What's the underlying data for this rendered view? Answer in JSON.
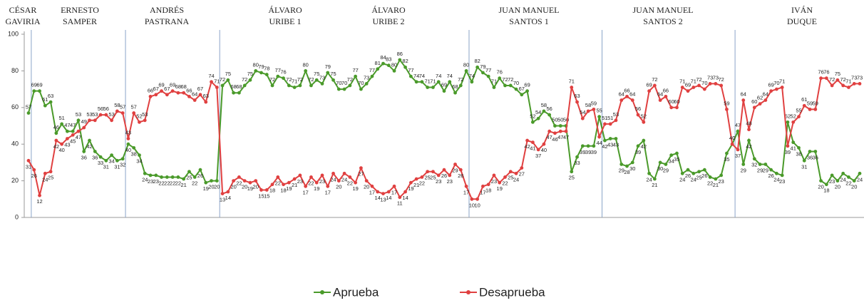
{
  "chart_data": {
    "type": "line",
    "periods": [
      [
        "CÉSAR",
        "GAVIRIA"
      ],
      [
        "ERNESTO",
        "SAMPER"
      ],
      [
        "ANDRÉS",
        "PASTRANA"
      ],
      [
        "ÁLVARO",
        "URIBE 1"
      ],
      [
        "ÁLVARO",
        "URIBE 2"
      ],
      [
        "JUAN MANUEL",
        "SANTOS 1"
      ],
      [
        "JUAN MANUEL",
        "SANTOS 2"
      ],
      [
        "IVÁN",
        "DUQUE"
      ]
    ],
    "categories": [
      null,
      null,
      null,
      null,
      null,
      null,
      null,
      null,
      null,
      null,
      null,
      null,
      null,
      null,
      null,
      null,
      null,
      null,
      null,
      null,
      null,
      null,
      null,
      null,
      null,
      null,
      null,
      null,
      null,
      null,
      null,
      null,
      null,
      null,
      null,
      null,
      null,
      null,
      null,
      null,
      null,
      null,
      null,
      null,
      null,
      null,
      null,
      null,
      null,
      null,
      null,
      null,
      null,
      null,
      null,
      null,
      null,
      null,
      null,
      null,
      null,
      null,
      null,
      null,
      null,
      null,
      null,
      null,
      null,
      null,
      null,
      null,
      null,
      null,
      null,
      null,
      null,
      null,
      null,
      null,
      null,
      null,
      null,
      null,
      null,
      null,
      null,
      null,
      null,
      null,
      null,
      null,
      null,
      null,
      null,
      null,
      null,
      null,
      null,
      null,
      null,
      null,
      null,
      null,
      null,
      null,
      null,
      null,
      null,
      null,
      null,
      null,
      null,
      null,
      null,
      null,
      null,
      null,
      null,
      null,
      null,
      null,
      null,
      null,
      null,
      null,
      null,
      null,
      null,
      null,
      null,
      null,
      null,
      null,
      null,
      null,
      null,
      null,
      null,
      null,
      null,
      null,
      null,
      null,
      null,
      null,
      null,
      null,
      null,
      null,
      null
    ],
    "series": [
      {
        "name": "Aprueba",
        "color": "#4a9a2a",
        "values": [
          57,
          69,
          69,
          61,
          63,
          46,
          51,
          47,
          47,
          53,
          36,
          42,
          36,
          33,
          31,
          34,
          31,
          32,
          40,
          38,
          34,
          24,
          23,
          23,
          22,
          22,
          22,
          22,
          21,
          25,
          22,
          26,
          19,
          20,
          20,
          72,
          75,
          68,
          68,
          72,
          75,
          80,
          79,
          78,
          72,
          77,
          76,
          72,
          71,
          72,
          80,
          72,
          75,
          73,
          79,
          75,
          70,
          70,
          72,
          77,
          70,
          73,
          77,
          81,
          84,
          83,
          80,
          86,
          82,
          77,
          74,
          74,
          71,
          71,
          74,
          69,
          74,
          68,
          72,
          80,
          74,
          82,
          79,
          77,
          71,
          76,
          72,
          72,
          70,
          67,
          69,
          52,
          54,
          58,
          56,
          50,
          50,
          50,
          25,
          33,
          39,
          39,
          39,
          55,
          42,
          43,
          43,
          29,
          28,
          30,
          39,
          42,
          24,
          21,
          30,
          29,
          34,
          35,
          24,
          26,
          24,
          25,
          26,
          22,
          21,
          23,
          35,
          40,
          47,
          29,
          42,
          32,
          29,
          29,
          26,
          24,
          23,
          52,
          41,
          38,
          31,
          36,
          36,
          20,
          18,
          23,
          20,
          24,
          22,
          20,
          24
        ]
      },
      {
        "name": "Desaprueba",
        "color": "#e04040",
        "values": [
          31,
          26,
          12,
          24,
          25,
          42,
          40,
          43,
          45,
          47,
          49,
          53,
          53,
          56,
          56,
          53,
          58,
          57,
          43,
          57,
          52,
          53,
          66,
          67,
          69,
          67,
          69,
          68,
          68,
          66,
          64,
          67,
          63,
          74,
          71,
          13,
          14,
          20,
          22,
          20,
          19,
          20,
          15,
          15,
          18,
          22,
          18,
          19,
          21,
          23,
          17,
          22,
          19,
          23,
          17,
          24,
          20,
          24,
          22,
          19,
          27,
          20,
          17,
          14,
          13,
          14,
          17,
          11,
          14,
          19,
          21,
          22,
          25,
          25,
          23,
          26,
          23,
          29,
          26,
          17,
          10,
          10,
          17,
          18,
          23,
          19,
          22,
          25,
          24,
          27,
          42,
          41,
          37,
          40,
          47,
          46,
          47,
          47,
          71,
          63,
          54,
          58,
          59,
          44,
          51,
          51,
          53,
          64,
          66,
          64,
          56,
          52,
          69,
          72,
          64,
          66,
          60,
          60,
          71,
          69,
          71,
          72,
          70,
          73,
          73,
          72,
          59,
          40,
          37,
          64,
          48,
          60,
          62,
          64,
          69,
          70,
          71,
          39,
          52,
          55,
          61,
          59,
          59,
          76,
          76,
          72,
          75,
          72,
          71,
          73,
          73
        ]
      }
    ],
    "ylim": [
      0,
      100
    ],
    "yticks": [
      0,
      20,
      40,
      60,
      80,
      100
    ]
  }
}
